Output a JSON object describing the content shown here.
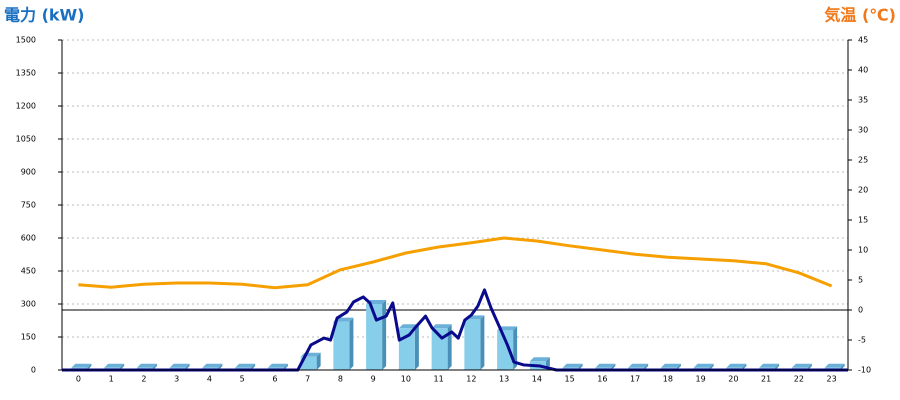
{
  "chart_data": {
    "type": "bar",
    "y_title": "電力 (kW)",
    "y2_title": "気温 (℃)",
    "categories": [
      "0",
      "1",
      "2",
      "3",
      "4",
      "5",
      "6",
      "7",
      "8",
      "9",
      "10",
      "11",
      "12",
      "13",
      "14",
      "15",
      "16",
      "17",
      "18",
      "19",
      "20",
      "21",
      "22",
      "23"
    ],
    "ylim": [
      0,
      1500
    ],
    "yticks": [
      0,
      150,
      300,
      450,
      600,
      750,
      900,
      1050,
      1200,
      1350,
      1500
    ],
    "y2lim": [
      -10,
      45
    ],
    "y2ticks": [
      -10,
      -5,
      0,
      5,
      10,
      15,
      20,
      25,
      30,
      35,
      40,
      45
    ],
    "grid": true,
    "series": [
      {
        "type": "bar",
        "color": "#87ceeb",
        "values": [
          10,
          10,
          10,
          10,
          10,
          10,
          10,
          60,
          220,
          300,
          190,
          190,
          230,
          180,
          40,
          10,
          10,
          10,
          10,
          10,
          10,
          10,
          10,
          10
        ]
      },
      {
        "type": "line",
        "color": "#0a0a8c",
        "x": [
          -0.5,
          6.7,
          7.1,
          7.5,
          7.7,
          7.9,
          8.2,
          8.4,
          8.7,
          8.9,
          9.1,
          9.4,
          9.6,
          9.8,
          10.1,
          10.3,
          10.6,
          10.8,
          11.1,
          11.4,
          11.6,
          11.8,
          12.0,
          12.2,
          12.4,
          12.6,
          12.9,
          13.1,
          13.3,
          13.6,
          14.1,
          14.6,
          23.5
        ],
        "values": [
          0,
          0,
          114,
          145,
          136,
          236,
          264,
          309,
          332,
          305,
          227,
          245,
          305,
          136,
          159,
          195,
          245,
          191,
          145,
          173,
          145,
          227,
          250,
          291,
          364,
          282,
          182,
          114,
          36,
          23,
          18,
          0,
          0
        ]
      },
      {
        "type": "line",
        "axis": "y2",
        "color": "#f5a000",
        "values": [
          4.2,
          3.8,
          4.3,
          4.5,
          4.5,
          4.3,
          3.7,
          4.2,
          6.7,
          8,
          9.5,
          10.5,
          11.2,
          12,
          11.5,
          10.7,
          10,
          9.3,
          8.8,
          8.5,
          8.2,
          7.7,
          6.2,
          4
        ]
      }
    ]
  }
}
